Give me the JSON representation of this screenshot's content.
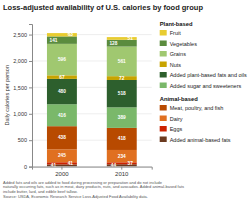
{
  "chart_data": {
    "type": "bar",
    "stacked": true,
    "title": "Loss-adjusted availability of U.S. calories by food group",
    "ylabel": "Daily calories per person",
    "categories": [
      "2000",
      "2010"
    ],
    "series": [
      {
        "name": "Added animal-based fats",
        "group": "Animal-based",
        "values": [
          41,
          44
        ],
        "color": "#6B3A1F"
      },
      {
        "name": "Eggs",
        "group": "Animal-based",
        "values": [
          41,
          37
        ],
        "color": "#CC2200"
      },
      {
        "name": "Dairy",
        "group": "Animal-based",
        "values": [
          245,
          234
        ],
        "color": "#E07020"
      },
      {
        "name": "Meat, poultry, and fish",
        "group": "Animal-based",
        "values": [
          438,
          418
        ],
        "color": "#B84A00"
      },
      {
        "name": "Added sugar and sweeteners",
        "group": "Plant-based",
        "values": [
          416,
          389
        ],
        "color": "#7AB86A"
      },
      {
        "name": "Added plant-based fats and oils",
        "group": "Plant-based",
        "values": [
          480,
          518
        ],
        "color": "#2D5F2D"
      },
      {
        "name": "Nuts",
        "group": "Plant-based",
        "values": [
          67,
          72
        ],
        "color": "#C8A400"
      },
      {
        "name": "Grains",
        "group": "Plant-based",
        "values": [
          596,
          561
        ],
        "color": "#A0C870"
      },
      {
        "name": "Vegetables",
        "group": "Plant-based",
        "values": [
          141,
          128
        ],
        "color": "#5B8C3E"
      },
      {
        "name": "Fruit",
        "group": "Plant-based",
        "values": [
          63,
          51
        ],
        "color": "#E8CC30"
      }
    ],
    "ylim": [
      0,
      2700
    ],
    "yticks": [
      0,
      500,
      {
        "value": 1000,
        "label": "1,000"
      },
      {
        "value": 1500,
        "label": "1,500"
      },
      {
        "value": 2000,
        "label": "2,000"
      },
      {
        "value": 2500,
        "label": "2,500"
      }
    ],
    "grid": true,
    "data_labels": true,
    "annotations": [
      "Added fats and oils are added to food during processing or preparation and do not include\nnaturally occurring fats, such as in meat, dairy products, nuts, and avocados. Added animal-based fats\ninclude butter, lard, and edible beef tallow.\nSource: USDA, Economic Research Service Loss-Adjusted Food Availability data."
    ]
  }
}
